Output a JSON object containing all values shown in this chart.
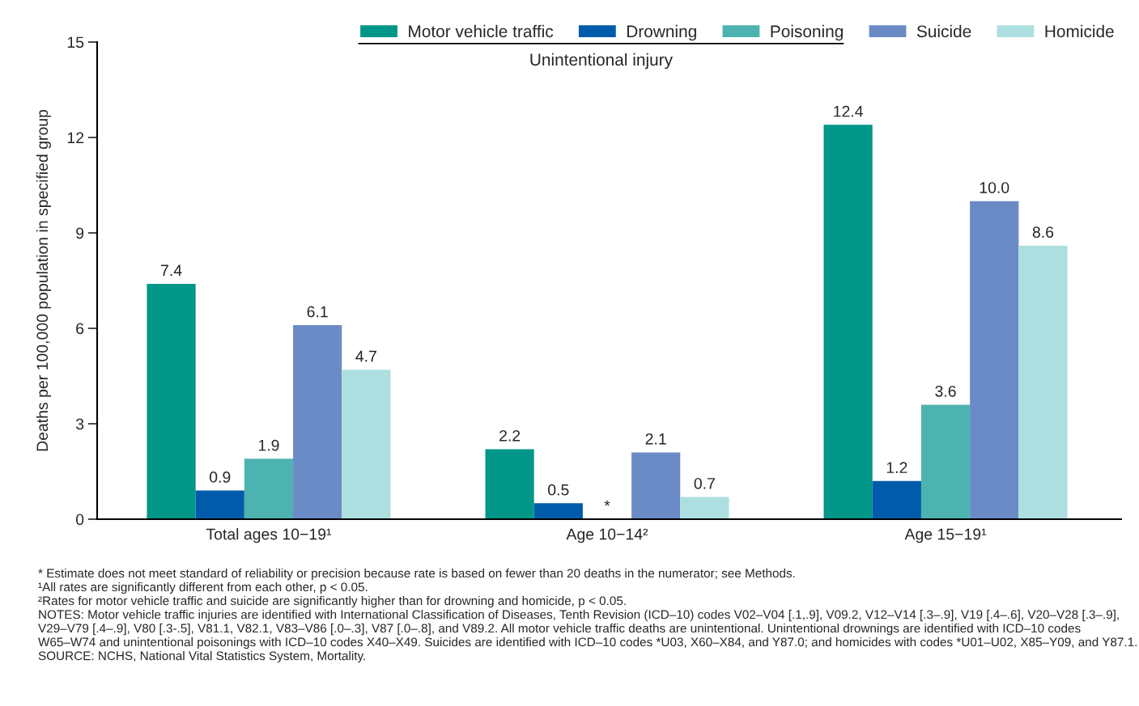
{
  "chart_data": {
    "type": "bar",
    "ylabel": "Deaths per 100,000 population in specified group",
    "categories": [
      "Total ages 10−19¹",
      "Age 10−14²",
      "Age 15−19¹"
    ],
    "series": [
      {
        "name": "Motor vehicle traffic",
        "color": "#009688",
        "values": [
          7.4,
          2.2,
          12.4
        ],
        "value_labels": [
          "7.4",
          "2.2",
          "12.4"
        ]
      },
      {
        "name": "Drowning",
        "color": "#005baa",
        "values": [
          0.9,
          0.5,
          1.2
        ],
        "value_labels": [
          "0.9",
          "0.5",
          "1.2"
        ]
      },
      {
        "name": "Poisoning",
        "color": "#4db3b0",
        "values": [
          1.9,
          null,
          3.6
        ],
        "value_labels": [
          "1.9",
          "*",
          "3.6"
        ]
      },
      {
        "name": "Suicide",
        "color": "#6b8bc6",
        "values": [
          6.1,
          2.1,
          10.0
        ],
        "value_labels": [
          "6.1",
          "2.1",
          "10.0"
        ]
      },
      {
        "name": "Homicide",
        "color": "#addfe0",
        "values": [
          4.7,
          0.7,
          8.6
        ],
        "value_labels": [
          "4.7",
          "0.7",
          "8.6"
        ]
      }
    ],
    "ylim": [
      0,
      15
    ],
    "yticks": [
      0,
      3,
      6,
      9,
      12,
      15
    ],
    "grid": false,
    "legend": "top right",
    "annotations": [
      "Unintentional injury",
      "* Estimate does not meet standard of reliability or precision because rate is based on fewer than 20 deaths in the numerator; see Methods.",
      "¹All rates are significantly different from each other, p < 0.05.",
      "²Rates for motor vehicle traffic and suicide are significantly higher than for drowning and homicide, p < 0.05.",
      "NOTES: Motor vehicle traffic injuries are identified with International Classification of Diseases, Tenth Revision (ICD–10) codes V02–V04 [.1,.9], V09.2, V12–V14 [.3–.9], V19 [.4–.6], V20–V28 [.3–.9], V29–V79 [.4–.9], V80 [.3-.5], V81.1, V82.1, V83–V86 [.0–.3], V87 [.0–.8], and V89.2. All motor vehicle traffic deaths are unintentional. Unintentional drownings are identified with ICD–10 codes W65–W74 and unintentional poisonings with ICD–10 codes X40–X49. Suicides are identified with ICD–10 codes *U03, X60–X84, and Y87.0; and homicides with codes *U01–U02, X85–Y09, and Y87.1.",
      "SOURCE: NCHS, National Vital Statistics System, Mortality."
    ]
  }
}
